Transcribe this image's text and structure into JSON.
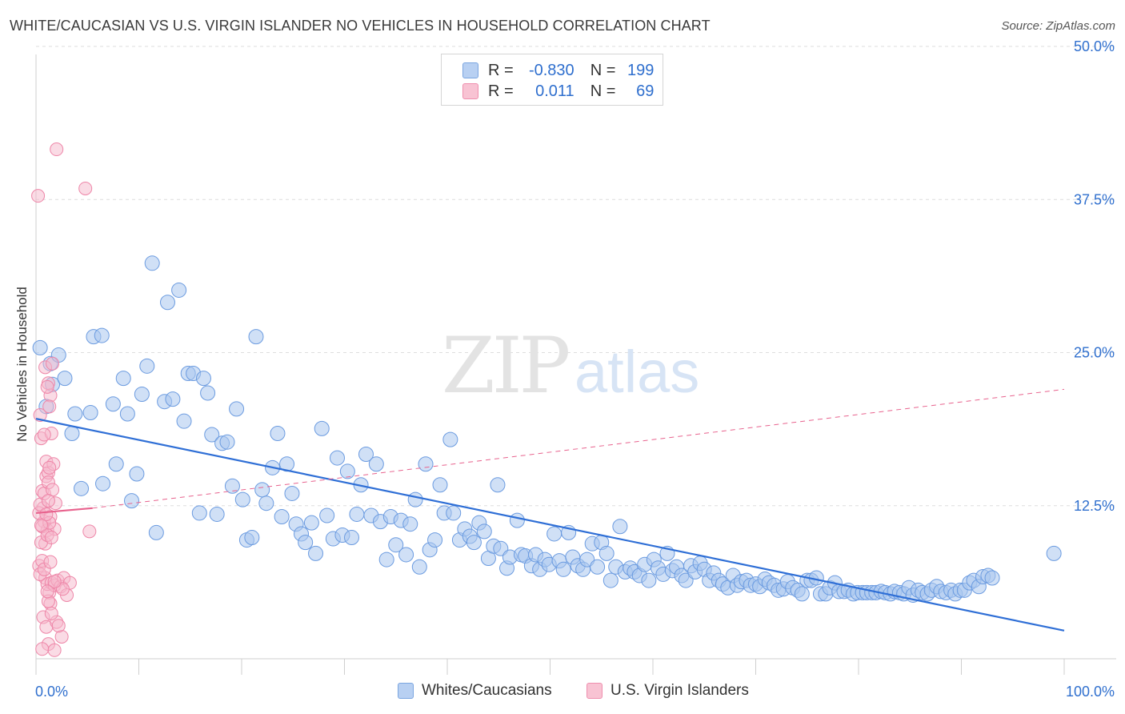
{
  "title": "WHITE/CAUCASIAN VS U.S. VIRGIN ISLANDER NO VEHICLES IN HOUSEHOLD CORRELATION CHART",
  "source": "Source: ZipAtlas.com",
  "watermark": {
    "zip": "ZIP",
    "atlas": "atlas"
  },
  "legend": {
    "rows": [
      {
        "r_label": "R =",
        "r_value": "-0.830",
        "n_label": "N =",
        "n_value": "199"
      },
      {
        "r_label": "R =",
        "r_value": "0.011",
        "n_label": "N =",
        "n_value": "69"
      }
    ]
  },
  "bottom_legend": {
    "series1": "Whites/Caucasians",
    "series2": "U.S. Virgin Islanders"
  },
  "colors": {
    "blue_fill": "#aac7ee",
    "blue_stroke": "#6b9be0",
    "blue_line": "#2f6fd6",
    "pink_fill": "#f6b8cb",
    "pink_stroke": "#ee86a8",
    "pink_line": "#e8638e",
    "grid": "#dedede",
    "tick_label": "#2f6fce"
  },
  "chart_data": {
    "type": "scatter",
    "title": "WHITE/CAUCASIAN VS U.S. VIRGIN ISLANDER NO VEHICLES IN HOUSEHOLD CORRELATION CHART",
    "xlabel": "",
    "ylabel": "No Vehicles in Household",
    "xlim": [
      0,
      100
    ],
    "ylim": [
      0,
      52
    ],
    "x_tick_labels": [
      "0.0%",
      "100.0%"
    ],
    "y_ticks": [
      12.5,
      25.0,
      37.5,
      50.0
    ],
    "y_tick_labels": [
      "12.5%",
      "25.0%",
      "37.5%",
      "50.0%"
    ],
    "grid": true,
    "legend_placement": "top-center",
    "series": [
      {
        "name": "Whites/Caucasians",
        "R": -0.83,
        "N": 199,
        "trend": {
          "x": [
            0,
            100
          ],
          "y": [
            19.6,
            2.3
          ],
          "style": "solid"
        },
        "points": [
          [
            0.4,
            25.4
          ],
          [
            1.0,
            20.6
          ],
          [
            1.4,
            24.1
          ],
          [
            1.6,
            22.4
          ],
          [
            2.2,
            24.8
          ],
          [
            2.8,
            22.9
          ],
          [
            3.5,
            18.4
          ],
          [
            3.8,
            20.0
          ],
          [
            4.4,
            13.9
          ],
          [
            5.3,
            20.1
          ],
          [
            5.6,
            26.3
          ],
          [
            6.4,
            26.4
          ],
          [
            6.5,
            14.3
          ],
          [
            7.5,
            20.8
          ],
          [
            7.8,
            15.9
          ],
          [
            8.5,
            22.9
          ],
          [
            8.9,
            20.0
          ],
          [
            9.3,
            12.9
          ],
          [
            9.8,
            15.1
          ],
          [
            10.3,
            21.6
          ],
          [
            10.8,
            23.9
          ],
          [
            11.3,
            32.3
          ],
          [
            11.7,
            10.3
          ],
          [
            12.5,
            21.0
          ],
          [
            12.8,
            29.1
          ],
          [
            13.3,
            21.2
          ],
          [
            13.9,
            30.1
          ],
          [
            14.4,
            19.4
          ],
          [
            14.8,
            23.3
          ],
          [
            15.3,
            23.3
          ],
          [
            15.9,
            11.9
          ],
          [
            16.3,
            22.9
          ],
          [
            16.7,
            21.7
          ],
          [
            17.1,
            18.3
          ],
          [
            17.6,
            11.8
          ],
          [
            18.1,
            17.6
          ],
          [
            18.6,
            17.7
          ],
          [
            19.1,
            14.1
          ],
          [
            19.5,
            20.4
          ],
          [
            20.1,
            13.0
          ],
          [
            20.5,
            9.7
          ],
          [
            21.0,
            9.9
          ],
          [
            21.4,
            26.3
          ],
          [
            22.0,
            13.8
          ],
          [
            22.4,
            12.7
          ],
          [
            23.0,
            15.6
          ],
          [
            23.5,
            18.4
          ],
          [
            23.9,
            11.6
          ],
          [
            24.4,
            15.9
          ],
          [
            24.9,
            13.5
          ],
          [
            25.3,
            11.0
          ],
          [
            25.8,
            10.2
          ],
          [
            26.2,
            9.5
          ],
          [
            26.8,
            11.1
          ],
          [
            27.2,
            8.6
          ],
          [
            27.8,
            18.8
          ],
          [
            28.3,
            11.7
          ],
          [
            28.9,
            9.8
          ],
          [
            29.3,
            16.4
          ],
          [
            29.8,
            10.1
          ],
          [
            30.3,
            15.3
          ],
          [
            30.7,
            9.9
          ],
          [
            31.2,
            11.8
          ],
          [
            31.6,
            14.2
          ],
          [
            32.1,
            16.7
          ],
          [
            32.6,
            11.7
          ],
          [
            33.1,
            15.9
          ],
          [
            33.5,
            11.2
          ],
          [
            34.1,
            8.1
          ],
          [
            34.5,
            11.6
          ],
          [
            35.0,
            9.3
          ],
          [
            35.5,
            11.3
          ],
          [
            36.0,
            8.5
          ],
          [
            36.4,
            11.0
          ],
          [
            36.9,
            13.0
          ],
          [
            37.3,
            7.5
          ],
          [
            37.9,
            15.9
          ],
          [
            38.3,
            8.9
          ],
          [
            38.8,
            9.7
          ],
          [
            39.3,
            14.2
          ],
          [
            39.7,
            11.9
          ],
          [
            40.3,
            17.9
          ],
          [
            40.6,
            11.9
          ],
          [
            41.2,
            9.7
          ],
          [
            41.7,
            10.6
          ],
          [
            42.2,
            10.0
          ],
          [
            42.6,
            9.5
          ],
          [
            43.1,
            11.1
          ],
          [
            43.6,
            10.4
          ],
          [
            44.0,
            8.2
          ],
          [
            44.5,
            9.2
          ],
          [
            44.9,
            14.2
          ],
          [
            45.2,
            9.0
          ],
          [
            45.8,
            7.4
          ],
          [
            46.1,
            8.3
          ],
          [
            46.8,
            11.3
          ],
          [
            47.2,
            8.5
          ],
          [
            47.6,
            8.4
          ],
          [
            48.2,
            7.6
          ],
          [
            48.6,
            8.5
          ],
          [
            49.0,
            7.3
          ],
          [
            49.5,
            8.1
          ],
          [
            49.9,
            7.7
          ],
          [
            50.4,
            10.2
          ],
          [
            50.9,
            8.0
          ],
          [
            51.3,
            7.3
          ],
          [
            51.8,
            10.3
          ],
          [
            52.2,
            8.3
          ],
          [
            52.7,
            7.6
          ],
          [
            53.2,
            7.3
          ],
          [
            53.6,
            8.1
          ],
          [
            54.1,
            9.4
          ],
          [
            54.6,
            7.5
          ],
          [
            55.0,
            9.5
          ],
          [
            55.5,
            8.6
          ],
          [
            55.9,
            6.4
          ],
          [
            56.4,
            7.5
          ],
          [
            56.8,
            10.8
          ],
          [
            57.3,
            7.1
          ],
          [
            57.8,
            7.4
          ],
          [
            58.2,
            7.1
          ],
          [
            58.7,
            6.8
          ],
          [
            59.2,
            7.7
          ],
          [
            59.6,
            6.4
          ],
          [
            60.1,
            8.1
          ],
          [
            60.5,
            7.4
          ],
          [
            61.0,
            6.9
          ],
          [
            61.4,
            8.6
          ],
          [
            61.9,
            7.2
          ],
          [
            62.3,
            7.5
          ],
          [
            62.8,
            6.8
          ],
          [
            63.2,
            6.4
          ],
          [
            63.7,
            7.6
          ],
          [
            64.1,
            7.1
          ],
          [
            64.6,
            7.8
          ],
          [
            65.0,
            7.3
          ],
          [
            65.5,
            6.4
          ],
          [
            65.9,
            7.0
          ],
          [
            66.4,
            6.4
          ],
          [
            66.8,
            6.1
          ],
          [
            67.3,
            5.8
          ],
          [
            67.8,
            6.8
          ],
          [
            68.2,
            6.0
          ],
          [
            68.6,
            6.3
          ],
          [
            69.1,
            6.4
          ],
          [
            69.5,
            6.0
          ],
          [
            70.0,
            6.1
          ],
          [
            70.4,
            5.9
          ],
          [
            70.9,
            6.5
          ],
          [
            71.3,
            6.2
          ],
          [
            71.8,
            6.0
          ],
          [
            72.2,
            5.6
          ],
          [
            72.7,
            5.7
          ],
          [
            73.1,
            6.3
          ],
          [
            73.6,
            5.8
          ],
          [
            74.1,
            5.6
          ],
          [
            74.5,
            5.3
          ],
          [
            75.0,
            6.4
          ],
          [
            75.4,
            6.4
          ],
          [
            75.9,
            6.6
          ],
          [
            76.3,
            5.3
          ],
          [
            76.8,
            5.3
          ],
          [
            77.2,
            5.8
          ],
          [
            77.7,
            6.2
          ],
          [
            78.1,
            5.5
          ],
          [
            78.6,
            5.5
          ],
          [
            79.0,
            5.6
          ],
          [
            79.5,
            5.3
          ],
          [
            79.9,
            5.4
          ],
          [
            80.4,
            5.4
          ],
          [
            80.8,
            5.4
          ],
          [
            81.3,
            5.4
          ],
          [
            81.7,
            5.4
          ],
          [
            82.2,
            5.5
          ],
          [
            82.6,
            5.4
          ],
          [
            83.1,
            5.3
          ],
          [
            83.5,
            5.5
          ],
          [
            84.0,
            5.4
          ],
          [
            84.4,
            5.3
          ],
          [
            84.9,
            5.8
          ],
          [
            85.3,
            5.2
          ],
          [
            85.8,
            5.6
          ],
          [
            86.2,
            5.4
          ],
          [
            86.7,
            5.3
          ],
          [
            87.1,
            5.6
          ],
          [
            87.6,
            5.9
          ],
          [
            88.0,
            5.5
          ],
          [
            88.5,
            5.4
          ],
          [
            89.0,
            5.6
          ],
          [
            89.4,
            5.3
          ],
          [
            89.9,
            5.6
          ],
          [
            90.3,
            5.6
          ],
          [
            90.8,
            6.2
          ],
          [
            91.2,
            6.4
          ],
          [
            91.7,
            5.9
          ],
          [
            92.1,
            6.7
          ],
          [
            92.6,
            6.8
          ],
          [
            93.0,
            6.6
          ],
          [
            99.0,
            8.6
          ]
        ]
      },
      {
        "name": "U.S. Virgin Islanders",
        "R": 0.011,
        "N": 69,
        "trend": {
          "x": [
            0,
            5.5,
            100
          ],
          "y": [
            11.9,
            12.3,
            22.0
          ],
          "style": "solid-then-dashed"
        },
        "points": [
          [
            0.2,
            37.8
          ],
          [
            0.4,
            19.9
          ],
          [
            0.5,
            18.0
          ],
          [
            0.6,
            13.7
          ],
          [
            0.7,
            12.3
          ],
          [
            0.8,
            11.2
          ],
          [
            0.9,
            9.4
          ],
          [
            1.0,
            14.9
          ],
          [
            1.1,
            10.5
          ],
          [
            0.3,
            11.9
          ],
          [
            0.6,
            10.8
          ],
          [
            0.4,
            12.6
          ],
          [
            0.8,
            13.5
          ],
          [
            1.2,
            15.2
          ],
          [
            0.5,
            9.5
          ],
          [
            0.9,
            6.6
          ],
          [
            1.3,
            5.4
          ],
          [
            0.7,
            3.4
          ],
          [
            1.0,
            2.6
          ],
          [
            1.4,
            4.5
          ],
          [
            0.3,
            7.6
          ],
          [
            0.6,
            8.0
          ],
          [
            1.1,
            6.1
          ],
          [
            1.5,
            6.2
          ],
          [
            1.8,
            6.0
          ],
          [
            2.1,
            6.4
          ],
          [
            2.4,
            5.9
          ],
          [
            2.7,
            6.6
          ],
          [
            3.0,
            5.2
          ],
          [
            3.3,
            6.2
          ],
          [
            1.2,
            22.5
          ],
          [
            1.4,
            21.5
          ],
          [
            0.9,
            23.8
          ],
          [
            1.6,
            24.1
          ],
          [
            1.1,
            22.2
          ],
          [
            1.3,
            20.6
          ],
          [
            1.5,
            18.4
          ],
          [
            1.0,
            16.1
          ],
          [
            1.7,
            15.9
          ],
          [
            1.2,
            14.4
          ],
          [
            1.6,
            13.8
          ],
          [
            1.9,
            12.7
          ],
          [
            1.4,
            11.6
          ],
          [
            1.8,
            10.6
          ],
          [
            1.1,
            10.1
          ],
          [
            1.5,
            9.9
          ],
          [
            1.3,
            11.1
          ],
          [
            1.0,
            11.8
          ],
          [
            2.0,
            3.0
          ],
          [
            2.5,
            1.8
          ],
          [
            1.2,
            1.2
          ],
          [
            0.6,
            0.8
          ],
          [
            1.8,
            0.7
          ],
          [
            2.2,
            2.7
          ],
          [
            1.5,
            3.7
          ],
          [
            1.2,
            4.7
          ],
          [
            2.6,
            5.7
          ],
          [
            0.4,
            6.9
          ],
          [
            0.8,
            7.3
          ],
          [
            1.4,
            7.9
          ],
          [
            1.3,
            15.6
          ],
          [
            0.8,
            18.3
          ],
          [
            1.2,
            12.9
          ],
          [
            0.5,
            10.9
          ],
          [
            1.8,
            6.3
          ],
          [
            1.1,
            5.5
          ],
          [
            2.0,
            41.6
          ],
          [
            4.8,
            38.4
          ],
          [
            5.2,
            10.4
          ]
        ]
      }
    ]
  }
}
